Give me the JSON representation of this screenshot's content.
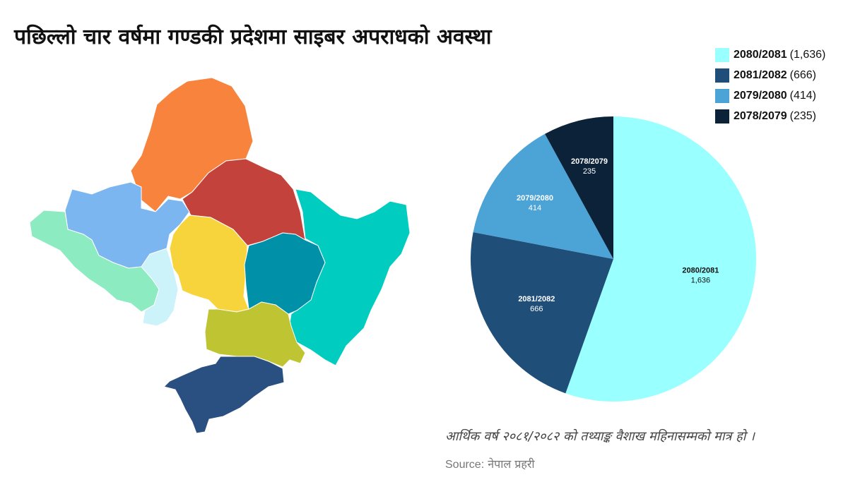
{
  "title": "पछिल्लो चार वर्षमा गण्डकी प्रदेशमा साइबर अपराधको अवस्था",
  "chart_data": {
    "type": "pie",
    "categories": [
      "2080/2081",
      "2081/2082",
      "2079/2080",
      "2078/2079"
    ],
    "values": [
      1636,
      666,
      414,
      235
    ],
    "value_labels": [
      "1,636",
      "666",
      "414",
      "235"
    ],
    "colors": [
      "#99FFFF",
      "#1F4E79",
      "#4BA3D6",
      "#0B2239"
    ],
    "legend_placement": "top-right",
    "start_angle_deg": 0,
    "direction": "clockwise"
  },
  "map": {
    "regions": [
      {
        "name": "north-orange-district",
        "color": "#F7833D"
      },
      {
        "name": "north-red-district",
        "color": "#C4423C"
      },
      {
        "name": "east-teal-district",
        "color": "#00CCBF"
      },
      {
        "name": "west-lightblue-district",
        "color": "#7CB6F0"
      },
      {
        "name": "west-mint-district",
        "color": "#8CEBC1"
      },
      {
        "name": "west-paleblue-district",
        "color": "#CCF2FA"
      },
      {
        "name": "central-yellow-district",
        "color": "#F7D43B"
      },
      {
        "name": "central-darkteal-district",
        "color": "#0090A8"
      },
      {
        "name": "south-olive-district",
        "color": "#BFC433"
      },
      {
        "name": "south-navy-district",
        "color": "#2A5082"
      }
    ]
  },
  "note": "आर्थिक वर्ष २०८१/२०८२ को तथ्याङ्क वैशाख महिनासम्मको मात्र हो ।",
  "source": {
    "label": "Source:",
    "value": "नेपाल प्रहरी"
  }
}
